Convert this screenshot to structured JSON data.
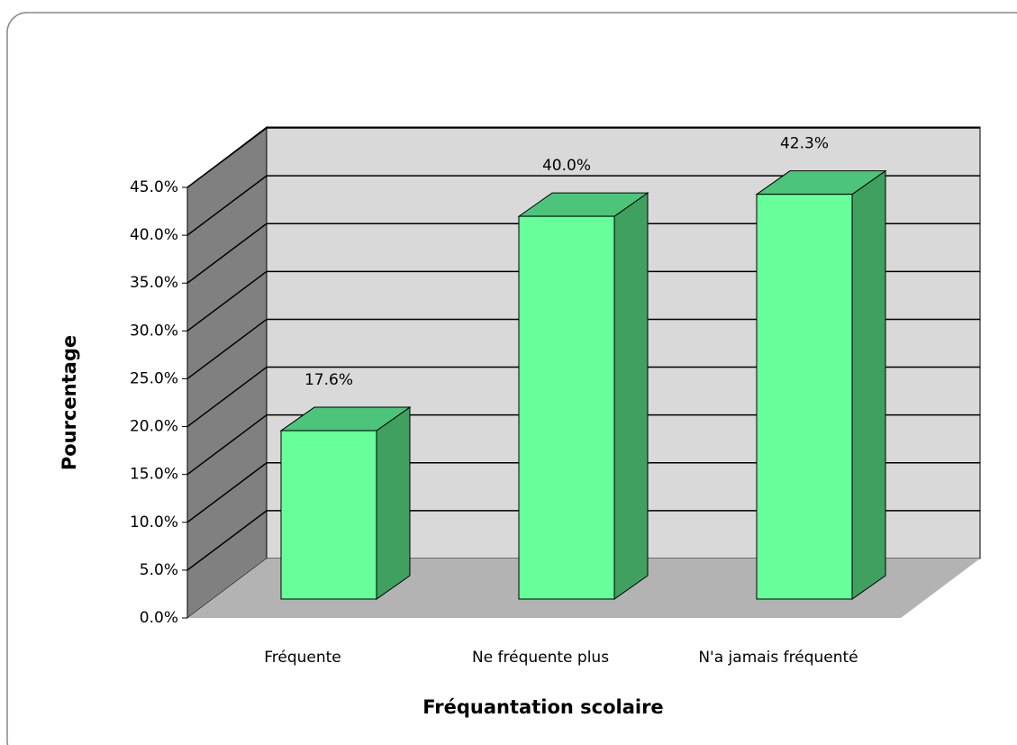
{
  "chart_data": {
    "type": "bar3d",
    "categories": [
      "Fréquente",
      "Ne fréquente plus",
      "N'a jamais fréquenté"
    ],
    "values": [
      17.6,
      40.0,
      42.3
    ],
    "value_labels": [
      "17.6%",
      "40.0%",
      "42.3%"
    ],
    "color": "#66ff99",
    "ylim": [
      0,
      45
    ],
    "yticks": [
      {
        "value": 0,
        "label": "0.0%"
      },
      {
        "value": 5,
        "label": "5.0%"
      },
      {
        "value": 10,
        "label": "10.0%"
      },
      {
        "value": 15,
        "label": "15.0%"
      },
      {
        "value": 20,
        "label": "20.0%"
      },
      {
        "value": 25,
        "label": "25.0%"
      },
      {
        "value": 30,
        "label": "30.0%"
      },
      {
        "value": 35,
        "label": "35.0%"
      },
      {
        "value": 40,
        "label": "40.0%"
      },
      {
        "value": 45,
        "label": "45.0%"
      }
    ],
    "y_label": "Pourcentage",
    "x_label": "Fréquantation scolaire",
    "grid": true
  }
}
